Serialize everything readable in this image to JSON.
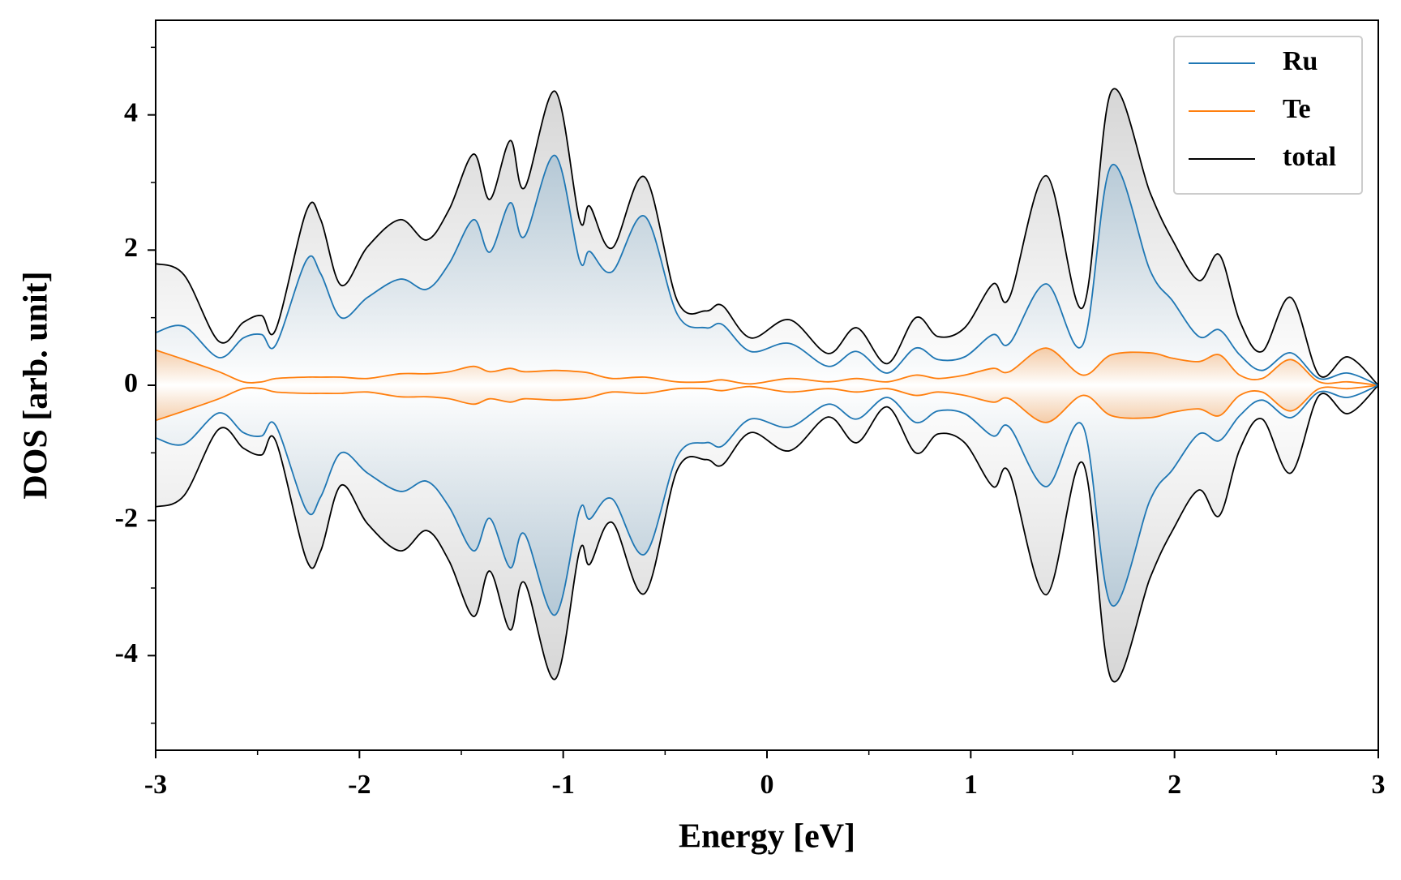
{
  "chart_data": {
    "type": "line",
    "xlabel": "Energy [eV]",
    "ylabel": "DOS [arb. unit]",
    "x": [
      -3,
      -2.86,
      -2.69,
      -2.57,
      -2.48,
      -2.41,
      -2.26,
      -2.19,
      -2.09,
      -1.96,
      -1.8,
      -1.67,
      -1.56,
      -1.44,
      -1.36,
      -1.26,
      -1.19,
      -1.04,
      -0.92,
      -0.87,
      -0.76,
      -0.6,
      -0.44,
      -0.3,
      -0.22,
      -0.08,
      0.11,
      0.3,
      0.44,
      0.59,
      0.73,
      0.84,
      0.97,
      1.11,
      1.19,
      1.37,
      1.55,
      1.69,
      1.88,
      1.99,
      2.12,
      2.22,
      2.32,
      2.43,
      2.57,
      2.71,
      2.85,
      3
    ],
    "series": [
      {
        "name": "Ru",
        "color": "#1f77b4",
        "values": [
          0.78,
          0.87,
          0.41,
          0.7,
          0.75,
          0.6,
          1.85,
          1.65,
          1.0,
          1.3,
          1.57,
          1.42,
          1.8,
          2.45,
          1.97,
          2.7,
          2.2,
          3.4,
          1.85,
          1.98,
          1.68,
          2.5,
          1.05,
          0.85,
          0.9,
          0.5,
          0.62,
          0.28,
          0.5,
          0.18,
          0.55,
          0.38,
          0.42,
          0.75,
          0.62,
          1.5,
          0.6,
          3.25,
          1.7,
          1.25,
          0.72,
          0.82,
          0.45,
          0.22,
          0.48,
          0.1,
          0.18,
          0
        ],
        "values_down": [
          -0.78,
          -0.87,
          -0.41,
          -0.7,
          -0.75,
          -0.6,
          -1.85,
          -1.65,
          -1.0,
          -1.3,
          -1.57,
          -1.42,
          -1.8,
          -2.45,
          -1.97,
          -2.7,
          -2.2,
          -3.4,
          -1.85,
          -1.98,
          -1.68,
          -2.5,
          -1.05,
          -0.85,
          -0.9,
          -0.5,
          -0.62,
          -0.28,
          -0.5,
          -0.18,
          -0.55,
          -0.38,
          -0.42,
          -0.75,
          -0.62,
          -1.5,
          -0.6,
          -3.25,
          -1.7,
          -1.25,
          -0.72,
          -0.82,
          -0.45,
          -0.22,
          -0.48,
          -0.1,
          -0.18,
          0
        ]
      },
      {
        "name": "Te",
        "color": "#ff7f0e",
        "values": [
          0.52,
          0.38,
          0.2,
          0.05,
          0.05,
          0.1,
          0.12,
          0.12,
          0.12,
          0.1,
          0.17,
          0.17,
          0.2,
          0.28,
          0.2,
          0.25,
          0.2,
          0.22,
          0.2,
          0.18,
          0.1,
          0.12,
          0.05,
          0.05,
          0.08,
          0.02,
          0.1,
          0.05,
          0.1,
          0.05,
          0.15,
          0.1,
          0.15,
          0.25,
          0.2,
          0.55,
          0.15,
          0.45,
          0.48,
          0.4,
          0.35,
          0.45,
          0.15,
          0.1,
          0.38,
          0.05,
          0.05,
          0
        ],
        "values_down": [
          -0.52,
          -0.38,
          -0.2,
          -0.05,
          -0.05,
          -0.1,
          -0.12,
          -0.12,
          -0.12,
          -0.1,
          -0.17,
          -0.17,
          -0.2,
          -0.28,
          -0.2,
          -0.25,
          -0.2,
          -0.22,
          -0.2,
          -0.18,
          -0.1,
          -0.12,
          -0.05,
          -0.05,
          -0.08,
          -0.02,
          -0.1,
          -0.05,
          -0.1,
          -0.05,
          -0.15,
          -0.1,
          -0.15,
          -0.25,
          -0.2,
          -0.55,
          -0.15,
          -0.45,
          -0.48,
          -0.4,
          -0.35,
          -0.45,
          -0.15,
          -0.1,
          -0.38,
          -0.05,
          -0.05,
          0
        ]
      },
      {
        "name": "total",
        "color": "#000000",
        "values": [
          1.8,
          1.63,
          0.65,
          0.93,
          1.03,
          0.83,
          2.58,
          2.45,
          1.48,
          2.05,
          2.45,
          2.15,
          2.6,
          3.42,
          2.75,
          3.62,
          2.92,
          4.35,
          2.45,
          2.65,
          2.03,
          3.08,
          1.25,
          1.1,
          1.18,
          0.7,
          0.97,
          0.47,
          0.85,
          0.32,
          1.0,
          0.72,
          0.85,
          1.5,
          1.3,
          3.1,
          1.15,
          4.35,
          2.85,
          2.15,
          1.55,
          1.93,
          0.95,
          0.5,
          1.3,
          0.15,
          0.42,
          0
        ],
        "values_down": [
          -1.8,
          -1.63,
          -0.65,
          -0.93,
          -1.03,
          -0.83,
          -2.58,
          -2.45,
          -1.48,
          -2.05,
          -2.45,
          -2.15,
          -2.6,
          -3.42,
          -2.75,
          -3.62,
          -2.92,
          -4.35,
          -2.45,
          -2.65,
          -2.03,
          -3.08,
          -1.25,
          -1.1,
          -1.18,
          -0.7,
          -0.97,
          -0.47,
          -0.85,
          -0.32,
          -1.0,
          -0.72,
          -0.85,
          -1.5,
          -1.3,
          -3.1,
          -1.15,
          -4.35,
          -2.85,
          -2.15,
          -1.55,
          -1.93,
          -0.95,
          -0.5,
          -1.3,
          -0.15,
          -0.42,
          0
        ]
      }
    ],
    "xlim": [
      -3,
      3
    ],
    "xticks": [
      -3,
      -2,
      -1,
      0,
      1,
      2,
      3
    ],
    "xminor_ticks": [
      -2.5,
      -1.5,
      -0.5,
      0.5,
      1.5,
      2.5
    ],
    "ylim": [
      -5.4,
      5.4
    ],
    "yticks": [
      -4,
      -2,
      0,
      2,
      4
    ],
    "yminor_ticks": [
      -5,
      -3,
      -1,
      1,
      3,
      5
    ],
    "legend": "upper right",
    "grid": false
  }
}
